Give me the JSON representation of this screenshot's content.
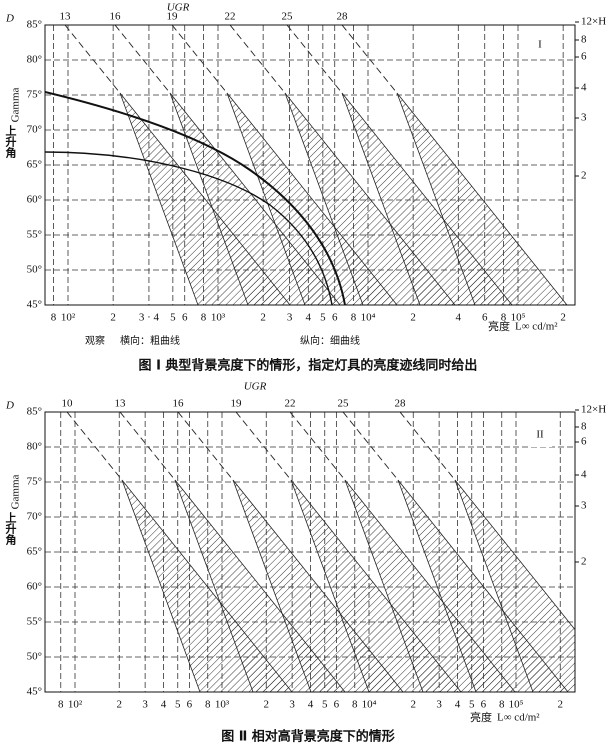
{
  "figures": [
    {
      "roman": "I",
      "ugr_title": "UGR",
      "ugr_labels": [
        "13",
        "16",
        "19",
        "22",
        "25",
        "28"
      ],
      "d_label": "D",
      "y_name": "上升角",
      "y_sub": "Gamma",
      "y_ticks": [
        "85°",
        "80°",
        "75°",
        "70°",
        "65°",
        "60°",
        "55°",
        "50°",
        "45°"
      ],
      "right_ticks": [
        "12×H",
        "8",
        "6",
        "4",
        "3",
        "2"
      ],
      "x_ticks": [
        "8",
        "10²",
        "2",
        "3 · 4",
        "5",
        "6",
        "8",
        "10³",
        "2",
        "3",
        "4",
        "5",
        "6",
        "8",
        "10⁴",
        "2",
        "4",
        "6",
        "8",
        "10⁵",
        "2"
      ],
      "x_label": "亮度",
      "x_unit": "L∞ cd/m²",
      "notes": [
        "观察",
        "横向：粗曲线",
        "纵向：细曲线"
      ],
      "caption": "图 Ⅰ   典型背景亮度下的情形，指定灯具的亮度迹线同时给出"
    },
    {
      "roman": "II",
      "ugr_title": "UGR",
      "ugr_labels": [
        "10",
        "13",
        "16",
        "19",
        "22",
        "25",
        "28"
      ],
      "d_label": "D",
      "y_name": "上升角",
      "y_sub": "Gamma",
      "y_ticks": [
        "85°",
        "80°",
        "75°",
        "70°",
        "65°",
        "60°",
        "55°",
        "50°",
        "45°"
      ],
      "right_ticks": [
        "12×H",
        "8",
        "6",
        "4",
        "3",
        "2"
      ],
      "x_ticks": [
        "8",
        "10²",
        "2",
        "3",
        "4",
        "5",
        "6",
        "8",
        "10³",
        "2",
        "3",
        "4",
        "5",
        "6",
        "8",
        "10⁴",
        "2",
        "3",
        "4",
        "5",
        "6",
        "8",
        "10⁵",
        "2"
      ],
      "x_label": "亮度",
      "x_unit": "L∞ cd/m²",
      "notes": [],
      "caption": "图 Ⅱ   相对高背景亮度下的情形"
    }
  ]
}
